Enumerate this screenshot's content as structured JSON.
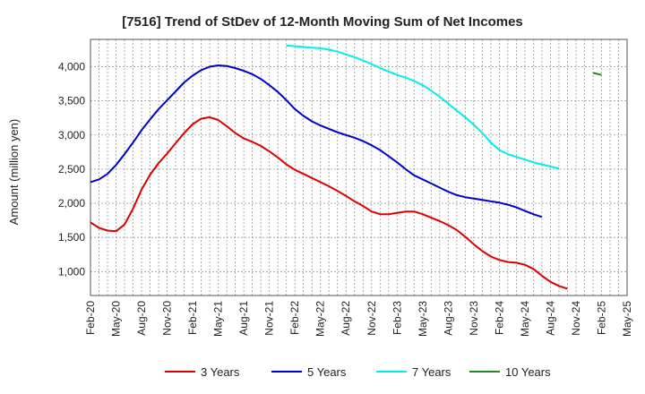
{
  "chart_data": {
    "type": "line",
    "title": "[7516]  Trend of StDev of 12-Month Moving Sum of Net Incomes",
    "xlabel": "",
    "ylabel": "Amount (million yen)",
    "ylim": [
      650,
      4400
    ],
    "yticks": [
      1000,
      1500,
      2000,
      2500,
      3000,
      3500,
      4000
    ],
    "ytick_labels": [
      "1,000",
      "1,500",
      "2,000",
      "2,500",
      "3,000",
      "3,500",
      "4,000"
    ],
    "x_start": "Feb-20",
    "x_tick_labels": [
      "Feb-20",
      "May-20",
      "Aug-20",
      "Nov-20",
      "Feb-21",
      "May-21",
      "Aug-21",
      "Nov-21",
      "Feb-22",
      "May-22",
      "Aug-22",
      "Nov-22",
      "Feb-23",
      "May-23",
      "Aug-23",
      "Nov-23",
      "Feb-24",
      "May-24",
      "Aug-24",
      "Nov-24",
      "Feb-25",
      "May-25"
    ],
    "grid": true,
    "legend_position": "bottom",
    "series": [
      {
        "name": "3 Years",
        "color": "#dd0000",
        "start": "Feb-20",
        "values": [
          1720,
          1640,
          1600,
          1590,
          1690,
          1920,
          2200,
          2420,
          2590,
          2730,
          2880,
          3030,
          3160,
          3240,
          3260,
          3220,
          3130,
          3030,
          2950,
          2900,
          2840,
          2760,
          2670,
          2570,
          2490,
          2430,
          2370,
          2310,
          2250,
          2180,
          2110,
          2030,
          1960,
          1880,
          1840,
          1840,
          1860,
          1880,
          1880,
          1840,
          1790,
          1740,
          1680,
          1610,
          1510,
          1400,
          1300,
          1220,
          1170,
          1140,
          1130,
          1100,
          1040,
          940,
          850,
          790,
          750
        ]
      },
      {
        "name": "5 Years",
        "color": "#0000cc",
        "start": "Feb-20",
        "values": [
          2310,
          2350,
          2430,
          2560,
          2720,
          2890,
          3070,
          3230,
          3380,
          3510,
          3640,
          3770,
          3870,
          3950,
          4000,
          4020,
          4010,
          3980,
          3940,
          3890,
          3820,
          3730,
          3630,
          3510,
          3380,
          3280,
          3200,
          3140,
          3090,
          3040,
          3000,
          2960,
          2910,
          2850,
          2780,
          2690,
          2600,
          2500,
          2410,
          2350,
          2290,
          2230,
          2170,
          2120,
          2090,
          2070,
          2050,
          2030,
          2010,
          1980,
          1940,
          1890,
          1840,
          1800
        ]
      },
      {
        "name": "7 Years",
        "color": "#00eeee",
        "start": "Jan-22",
        "values": [
          4310,
          4300,
          4290,
          4280,
          4270,
          4250,
          4220,
          4180,
          4140,
          4090,
          4040,
          3980,
          3930,
          3880,
          3840,
          3790,
          3730,
          3650,
          3560,
          3460,
          3360,
          3260,
          3150,
          3030,
          2890,
          2780,
          2720,
          2680,
          2640,
          2600,
          2570,
          2540,
          2510
        ]
      },
      {
        "name": "10 Years",
        "color": "#228822",
        "start": "Jan-25",
        "values": [
          3910,
          3880
        ]
      }
    ]
  }
}
